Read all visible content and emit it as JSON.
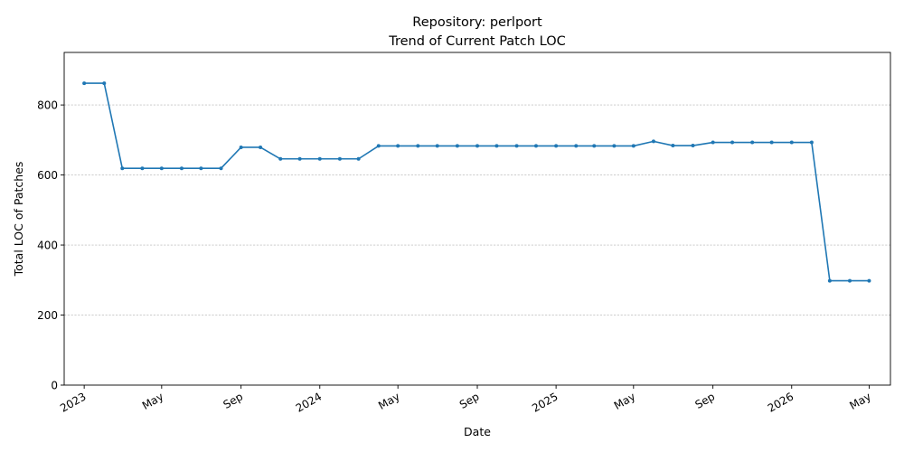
{
  "chart_data": {
    "type": "line",
    "title": [
      "Repository: perlport",
      "Trend of Current Patch LOC"
    ],
    "xlabel": "Date",
    "ylabel": "Total LOC of Patches",
    "ylim": [
      0,
      950
    ],
    "xlim": [
      "2022-12-01",
      "2026-06-03"
    ],
    "yticks": [
      0,
      200,
      400,
      600,
      800
    ],
    "xticks": [
      {
        "date": "2023-01-01",
        "label": "2023"
      },
      {
        "date": "2023-05-01",
        "label": "May"
      },
      {
        "date": "2023-09-01",
        "label": "Sep"
      },
      {
        "date": "2024-01-01",
        "label": "2024"
      },
      {
        "date": "2024-05-01",
        "label": "May"
      },
      {
        "date": "2024-09-01",
        "label": "Sep"
      },
      {
        "date": "2025-01-01",
        "label": "2025"
      },
      {
        "date": "2025-05-01",
        "label": "May"
      },
      {
        "date": "2025-09-01",
        "label": "Sep"
      },
      {
        "date": "2026-01-01",
        "label": "2026"
      },
      {
        "date": "2026-05-01",
        "label": "May"
      }
    ],
    "grid": "y-dashed",
    "color": "#1f77b4",
    "series": [
      {
        "x": [
          "2023-01-01",
          "2023-02-01",
          "2023-03-01",
          "2023-04-01",
          "2023-05-01",
          "2023-06-01",
          "2023-07-01",
          "2023-08-01",
          "2023-09-01",
          "2023-10-01",
          "2023-11-01",
          "2023-12-01",
          "2024-01-01",
          "2024-02-01",
          "2024-03-01",
          "2024-04-01",
          "2024-05-01",
          "2024-06-01",
          "2024-07-01",
          "2024-08-01",
          "2024-09-01",
          "2024-10-01",
          "2024-11-01",
          "2024-12-01",
          "2025-01-01",
          "2025-02-01",
          "2025-03-01",
          "2025-04-01",
          "2025-05-01",
          "2025-06-01",
          "2025-07-01",
          "2025-08-01",
          "2025-09-01",
          "2025-10-01",
          "2025-11-01",
          "2025-12-01",
          "2026-01-01",
          "2026-02-01",
          "2026-03-01",
          "2026-04-01",
          "2026-05-01"
        ],
        "values": [
          862,
          862,
          619,
          619,
          619,
          619,
          619,
          619,
          679,
          679,
          646,
          646,
          646,
          646,
          646,
          683,
          683,
          683,
          683,
          683,
          683,
          683,
          683,
          683,
          683,
          683,
          683,
          683,
          683,
          696,
          684,
          684,
          693,
          693,
          693,
          693,
          693,
          693,
          298,
          298,
          298
        ]
      }
    ]
  }
}
